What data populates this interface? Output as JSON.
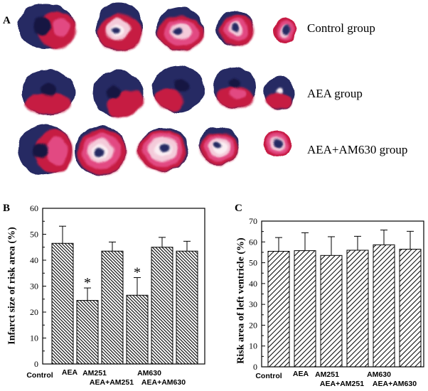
{
  "panel_a": {
    "label": "A",
    "rows": [
      {
        "group": "Control group"
      },
      {
        "group": "AEA group"
      },
      {
        "group": "AEA+AM630 group"
      }
    ]
  },
  "stain_colors": {
    "evans_blue": "#272b64",
    "evans_blue_dark": "#161843",
    "ttc_red": "#c61a43",
    "ttc_pink": "#e24a82",
    "infarct_pale": "#f4cbda",
    "infarct_white": "#fbeef3"
  },
  "chart_data": [
    {
      "panel_label": "B",
      "type": "bar",
      "categories": [
        "Control",
        "AEA",
        "AM251",
        "AEA+AM251",
        "AM630",
        "AEA+AM630"
      ],
      "values": [
        46.5,
        24.5,
        43.5,
        26.5,
        45.0,
        43.5
      ],
      "errors": [
        6.6,
        4.8,
        3.5,
        6.8,
        3.8,
        3.8
      ],
      "significance": [
        "",
        "*",
        "",
        "*",
        "",
        ""
      ],
      "ylabel": "Infarct size of risk area (%)",
      "ylim": [
        0,
        60
      ],
      "yticks": [
        0,
        10,
        20,
        30,
        40,
        50,
        60
      ],
      "grid": false
    },
    {
      "panel_label": "C",
      "type": "bar",
      "categories": [
        "Control",
        "AEA",
        "AM251",
        "AEA+AM251",
        "AM630",
        "AEA+AM630"
      ],
      "values": [
        55.5,
        55.8,
        53.5,
        56.0,
        58.6,
        56.5
      ],
      "errors": [
        6.6,
        8.6,
        9.0,
        6.7,
        7.1,
        8.6
      ],
      "significance": [
        "",
        "",
        "",
        "",
        "",
        ""
      ],
      "ylabel": "Risk area of left ventricle (%)",
      "ylim": [
        0,
        70
      ],
      "yticks": [
        0,
        10,
        20,
        30,
        40,
        50,
        60,
        70
      ],
      "grid": false
    }
  ]
}
